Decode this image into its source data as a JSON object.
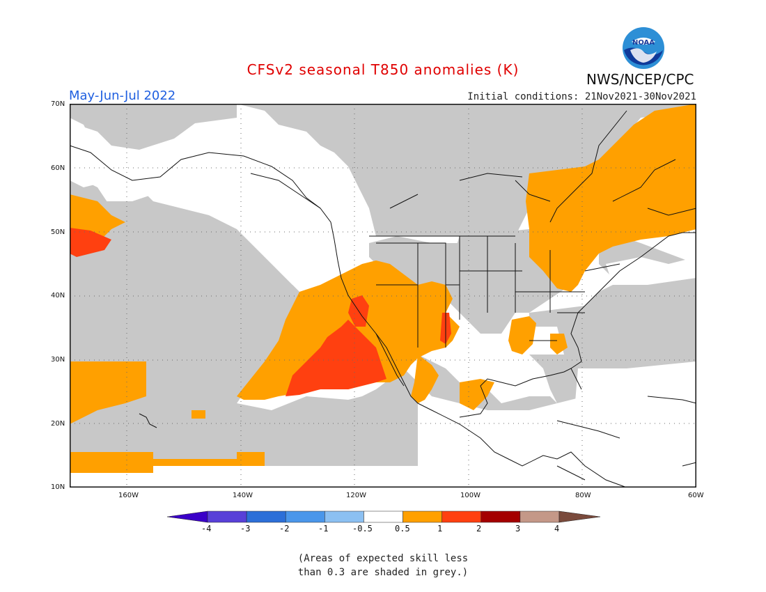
{
  "title": "CFSv2 seasonal T850 anomalies (K)",
  "season": "May-Jun-Jul 2022",
  "initial_conditions": "Initial conditions: 21Nov2021-30Nov2021",
  "agency": "NWS/NCEP/CPC",
  "logo_text": "NOAA",
  "map": {
    "lat_labels": [
      "70N",
      "60N",
      "50N",
      "40N",
      "30N",
      "20N",
      "10N"
    ],
    "lon_labels": [
      "160W",
      "140W",
      "120W",
      "100W",
      "80W",
      "60W"
    ],
    "extent": {
      "lon_min": -172,
      "lon_max": -60,
      "lat_min": 10,
      "lat_max": 70
    }
  },
  "colorbar": {
    "labels": [
      "-4",
      "-3",
      "-2",
      "-1",
      "-0.5",
      "0.5",
      "1",
      "2",
      "3",
      "4"
    ],
    "colors": [
      "#3a00c8",
      "#5840d8",
      "#2c6fd8",
      "#4a96ea",
      "#8cc0f2",
      "#ffffff",
      "#ffa000",
      "#ff4010",
      "#a40000",
      "#c49888",
      "#7a4a3c"
    ]
  },
  "colors": {
    "grey": "#c8c8c8",
    "orange": "#ffa000",
    "red": "#ff4010",
    "title": "#e00000",
    "season": "#1f5fe0"
  },
  "note": {
    "line1": "(Areas of expected skill less",
    "line2": "than 0.3 are shaded in grey.)"
  }
}
